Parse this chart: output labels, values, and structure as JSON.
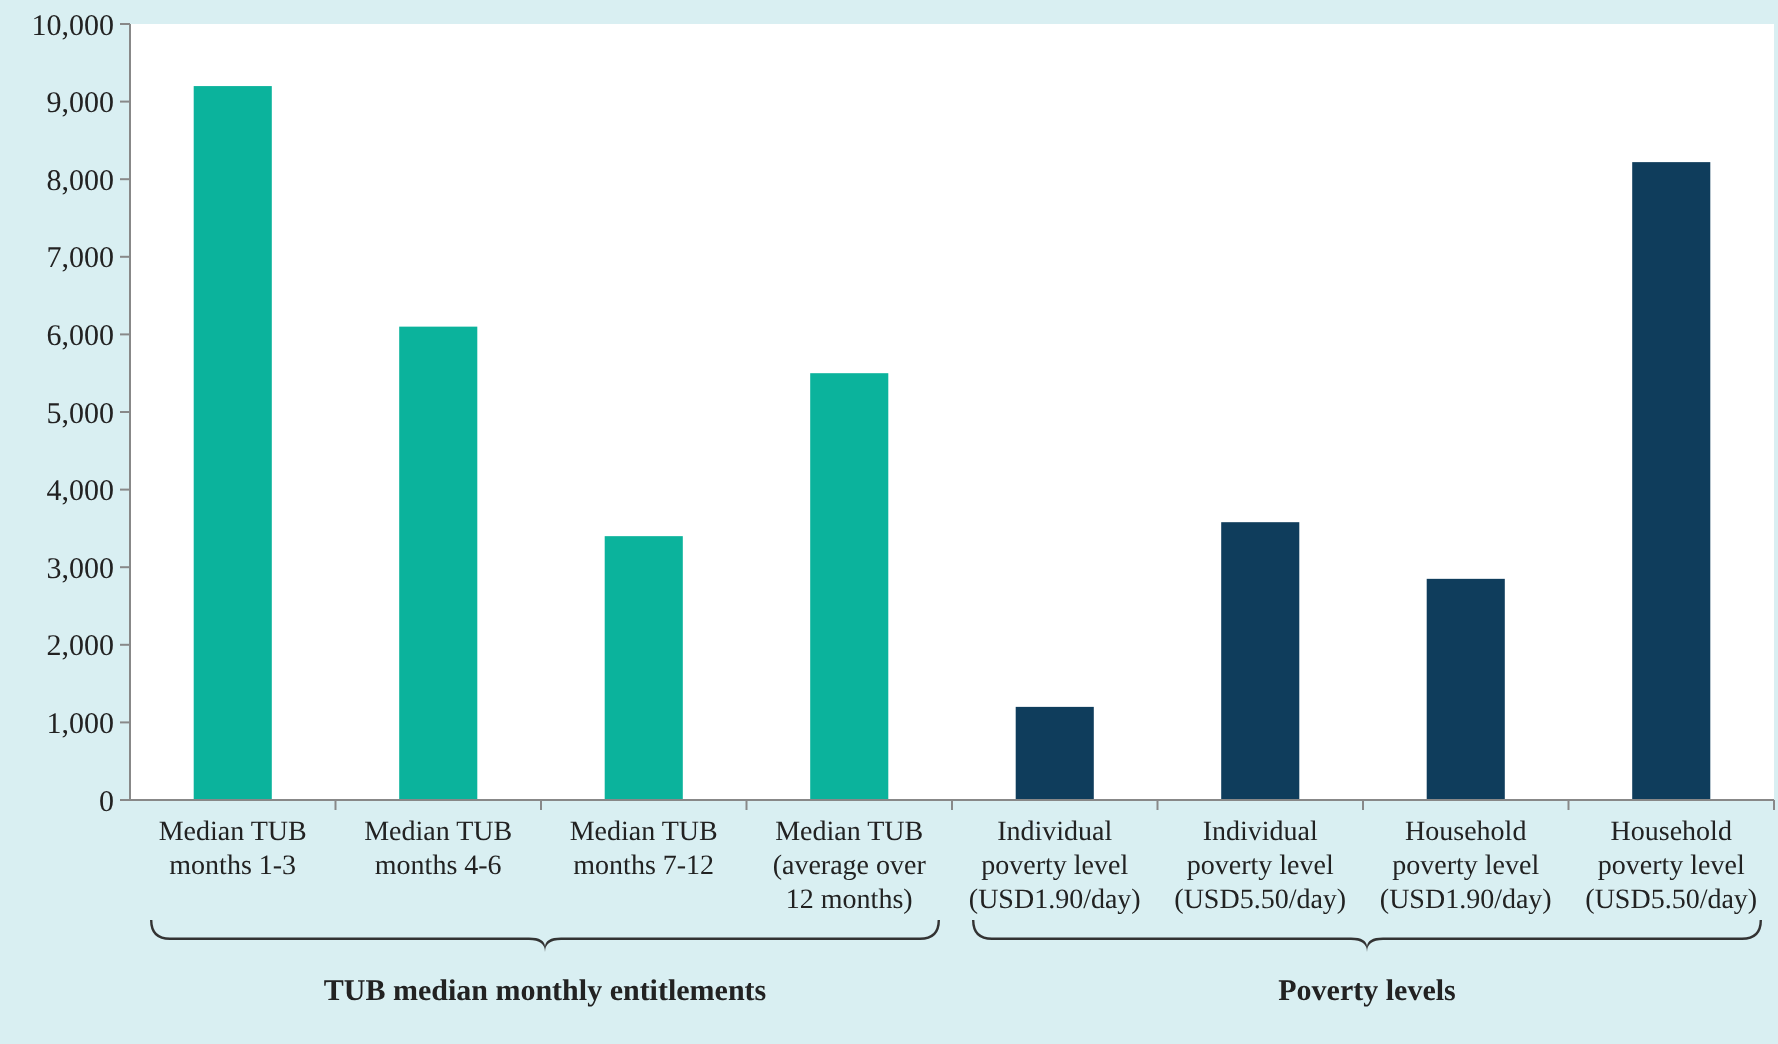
{
  "chart_data": {
    "type": "bar",
    "categories": [
      "Median TUB months 1-3",
      "Median TUB months 4-6",
      "Median TUB months 7-12",
      "Median TUB (average over 12 months)",
      "Individual poverty level (USD1.90/day)",
      "Individual poverty level (USD5.50/day)",
      "Household poverty level (USD1.90/day)",
      "Household poverty level (USD5.50/day)"
    ],
    "values": [
      9200,
      6100,
      3400,
      5500,
      1200,
      3580,
      2850,
      8220
    ],
    "colors": [
      "#0bb39c",
      "#0bb39c",
      "#0bb39c",
      "#0bb39c",
      "#0f3d5c",
      "#0f3d5c",
      "#0f3d5c",
      "#0f3d5c"
    ],
    "ylim": [
      0,
      10000
    ],
    "yticks": [
      {
        "value": 0,
        "label": "0"
      },
      {
        "value": 1000,
        "label": "1,000"
      },
      {
        "value": 2000,
        "label": "2,000"
      },
      {
        "value": 3000,
        "label": "3,000"
      },
      {
        "value": 4000,
        "label": "4,000"
      },
      {
        "value": 5000,
        "label": "5,000"
      },
      {
        "value": 6000,
        "label": "6,000"
      },
      {
        "value": 7000,
        "label": "7,000"
      },
      {
        "value": 8000,
        "label": "8,000"
      },
      {
        "value": 9000,
        "label": "9,000"
      },
      {
        "value": 10000,
        "label": "10,000"
      }
    ],
    "annotations": [
      "TUB median monthly entitlements",
      "Poverty levels"
    ],
    "grid": false
  }
}
